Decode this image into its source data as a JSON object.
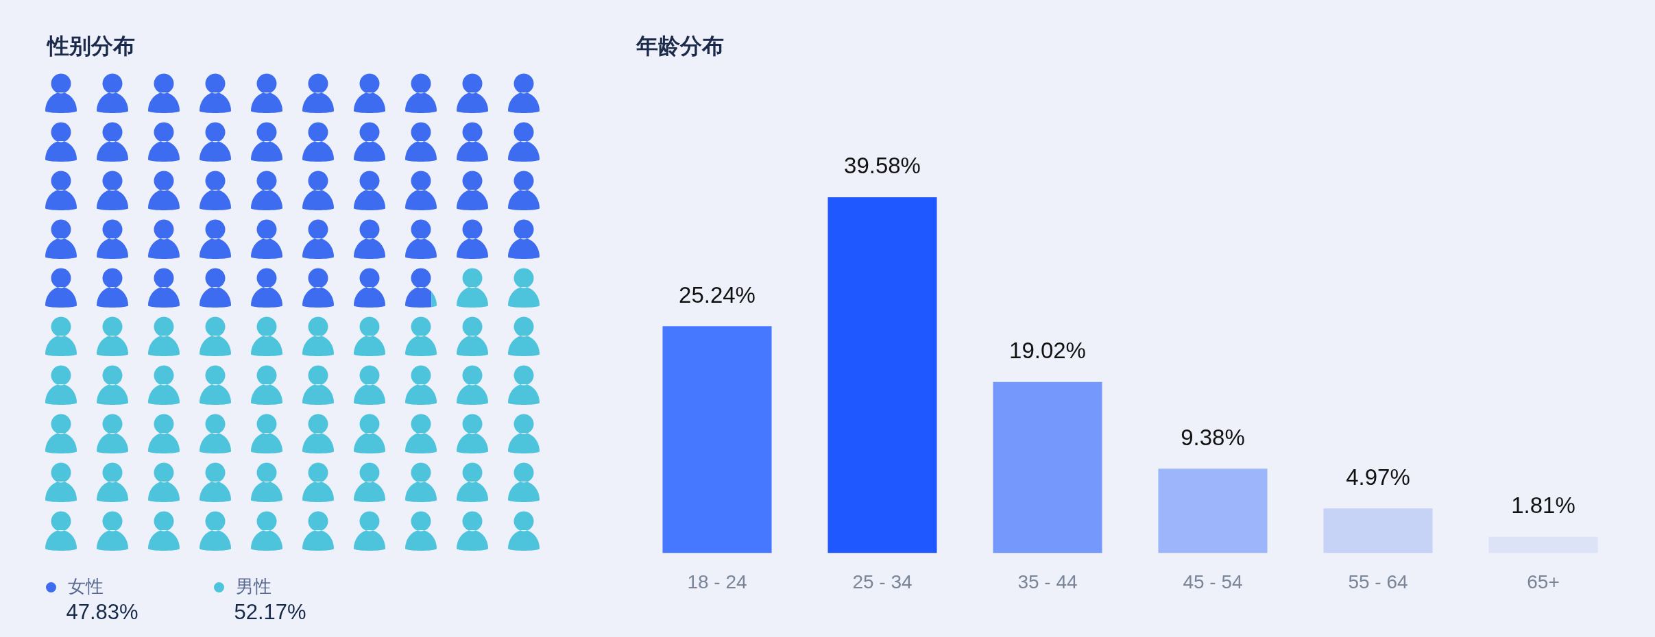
{
  "chart_data": [
    {
      "type": "other",
      "title": "性别分布",
      "series": [
        {
          "name": "女性",
          "color": "#3d6cf0",
          "values": [
            47.83
          ],
          "value_labels": [
            "47.83%"
          ]
        },
        {
          "name": "男性",
          "color": "#4ec4dc",
          "values": [
            52.17
          ],
          "value_labels": [
            "52.17%"
          ]
        }
      ],
      "legend": "bottom left"
    },
    {
      "type": "bar",
      "title": "年龄分布",
      "categories": [
        "18 - 24",
        "25 - 34",
        "35 - 44",
        "45 - 54",
        "55 - 64",
        "65+"
      ],
      "values": [
        25.24,
        39.58,
        19.02,
        9.38,
        4.97,
        1.81
      ],
      "colors": [
        "#4577ff",
        "#1f58ff",
        "#7598fd",
        "#9db6fb",
        "#c6d3f6",
        "#dce3f6"
      ],
      "value_labels": [
        "25.24%",
        "39.58%",
        "19.02%",
        "9.38%",
        "4.97%",
        "1.81%"
      ],
      "tick_labels": "x"
    }
  ]
}
